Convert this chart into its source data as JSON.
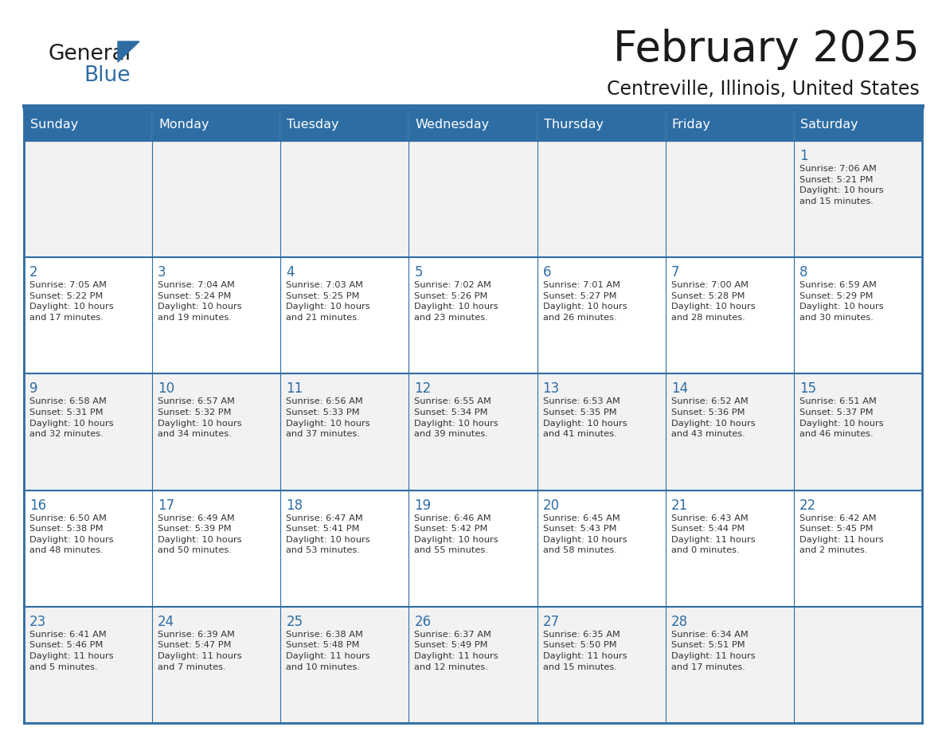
{
  "title": "February 2025",
  "subtitle": "Centreville, Illinois, United States",
  "header_bg": "#2E6DA4",
  "header_text": "#FFFFFF",
  "cell_bg_odd": "#F2F2F2",
  "cell_bg_even": "#FFFFFF",
  "border_color": "#2E6DA4",
  "day_headers": [
    "Sunday",
    "Monday",
    "Tuesday",
    "Wednesday",
    "Thursday",
    "Friday",
    "Saturday"
  ],
  "title_color": "#1a1a1a",
  "subtitle_color": "#1a1a1a",
  "day_number_color": "#2E6DA4",
  "cell_text_color": "#333333",
  "logo_general_color": "#1a1a1a",
  "logo_blue_color": "#2E6DA4",
  "logo_triangle_color": "#2E6DA4",
  "weeks": [
    [
      {
        "day": null,
        "info": null
      },
      {
        "day": null,
        "info": null
      },
      {
        "day": null,
        "info": null
      },
      {
        "day": null,
        "info": null
      },
      {
        "day": null,
        "info": null
      },
      {
        "day": null,
        "info": null
      },
      {
        "day": 1,
        "info": "Sunrise: 7:06 AM\nSunset: 5:21 PM\nDaylight: 10 hours\nand 15 minutes."
      }
    ],
    [
      {
        "day": 2,
        "info": "Sunrise: 7:05 AM\nSunset: 5:22 PM\nDaylight: 10 hours\nand 17 minutes."
      },
      {
        "day": 3,
        "info": "Sunrise: 7:04 AM\nSunset: 5:24 PM\nDaylight: 10 hours\nand 19 minutes."
      },
      {
        "day": 4,
        "info": "Sunrise: 7:03 AM\nSunset: 5:25 PM\nDaylight: 10 hours\nand 21 minutes."
      },
      {
        "day": 5,
        "info": "Sunrise: 7:02 AM\nSunset: 5:26 PM\nDaylight: 10 hours\nand 23 minutes."
      },
      {
        "day": 6,
        "info": "Sunrise: 7:01 AM\nSunset: 5:27 PM\nDaylight: 10 hours\nand 26 minutes."
      },
      {
        "day": 7,
        "info": "Sunrise: 7:00 AM\nSunset: 5:28 PM\nDaylight: 10 hours\nand 28 minutes."
      },
      {
        "day": 8,
        "info": "Sunrise: 6:59 AM\nSunset: 5:29 PM\nDaylight: 10 hours\nand 30 minutes."
      }
    ],
    [
      {
        "day": 9,
        "info": "Sunrise: 6:58 AM\nSunset: 5:31 PM\nDaylight: 10 hours\nand 32 minutes."
      },
      {
        "day": 10,
        "info": "Sunrise: 6:57 AM\nSunset: 5:32 PM\nDaylight: 10 hours\nand 34 minutes."
      },
      {
        "day": 11,
        "info": "Sunrise: 6:56 AM\nSunset: 5:33 PM\nDaylight: 10 hours\nand 37 minutes."
      },
      {
        "day": 12,
        "info": "Sunrise: 6:55 AM\nSunset: 5:34 PM\nDaylight: 10 hours\nand 39 minutes."
      },
      {
        "day": 13,
        "info": "Sunrise: 6:53 AM\nSunset: 5:35 PM\nDaylight: 10 hours\nand 41 minutes."
      },
      {
        "day": 14,
        "info": "Sunrise: 6:52 AM\nSunset: 5:36 PM\nDaylight: 10 hours\nand 43 minutes."
      },
      {
        "day": 15,
        "info": "Sunrise: 6:51 AM\nSunset: 5:37 PM\nDaylight: 10 hours\nand 46 minutes."
      }
    ],
    [
      {
        "day": 16,
        "info": "Sunrise: 6:50 AM\nSunset: 5:38 PM\nDaylight: 10 hours\nand 48 minutes."
      },
      {
        "day": 17,
        "info": "Sunrise: 6:49 AM\nSunset: 5:39 PM\nDaylight: 10 hours\nand 50 minutes."
      },
      {
        "day": 18,
        "info": "Sunrise: 6:47 AM\nSunset: 5:41 PM\nDaylight: 10 hours\nand 53 minutes."
      },
      {
        "day": 19,
        "info": "Sunrise: 6:46 AM\nSunset: 5:42 PM\nDaylight: 10 hours\nand 55 minutes."
      },
      {
        "day": 20,
        "info": "Sunrise: 6:45 AM\nSunset: 5:43 PM\nDaylight: 10 hours\nand 58 minutes."
      },
      {
        "day": 21,
        "info": "Sunrise: 6:43 AM\nSunset: 5:44 PM\nDaylight: 11 hours\nand 0 minutes."
      },
      {
        "day": 22,
        "info": "Sunrise: 6:42 AM\nSunset: 5:45 PM\nDaylight: 11 hours\nand 2 minutes."
      }
    ],
    [
      {
        "day": 23,
        "info": "Sunrise: 6:41 AM\nSunset: 5:46 PM\nDaylight: 11 hours\nand 5 minutes."
      },
      {
        "day": 24,
        "info": "Sunrise: 6:39 AM\nSunset: 5:47 PM\nDaylight: 11 hours\nand 7 minutes."
      },
      {
        "day": 25,
        "info": "Sunrise: 6:38 AM\nSunset: 5:48 PM\nDaylight: 11 hours\nand 10 minutes."
      },
      {
        "day": 26,
        "info": "Sunrise: 6:37 AM\nSunset: 5:49 PM\nDaylight: 11 hours\nand 12 minutes."
      },
      {
        "day": 27,
        "info": "Sunrise: 6:35 AM\nSunset: 5:50 PM\nDaylight: 11 hours\nand 15 minutes."
      },
      {
        "day": 28,
        "info": "Sunrise: 6:34 AM\nSunset: 5:51 PM\nDaylight: 11 hours\nand 17 minutes."
      },
      {
        "day": null,
        "info": null
      }
    ]
  ]
}
